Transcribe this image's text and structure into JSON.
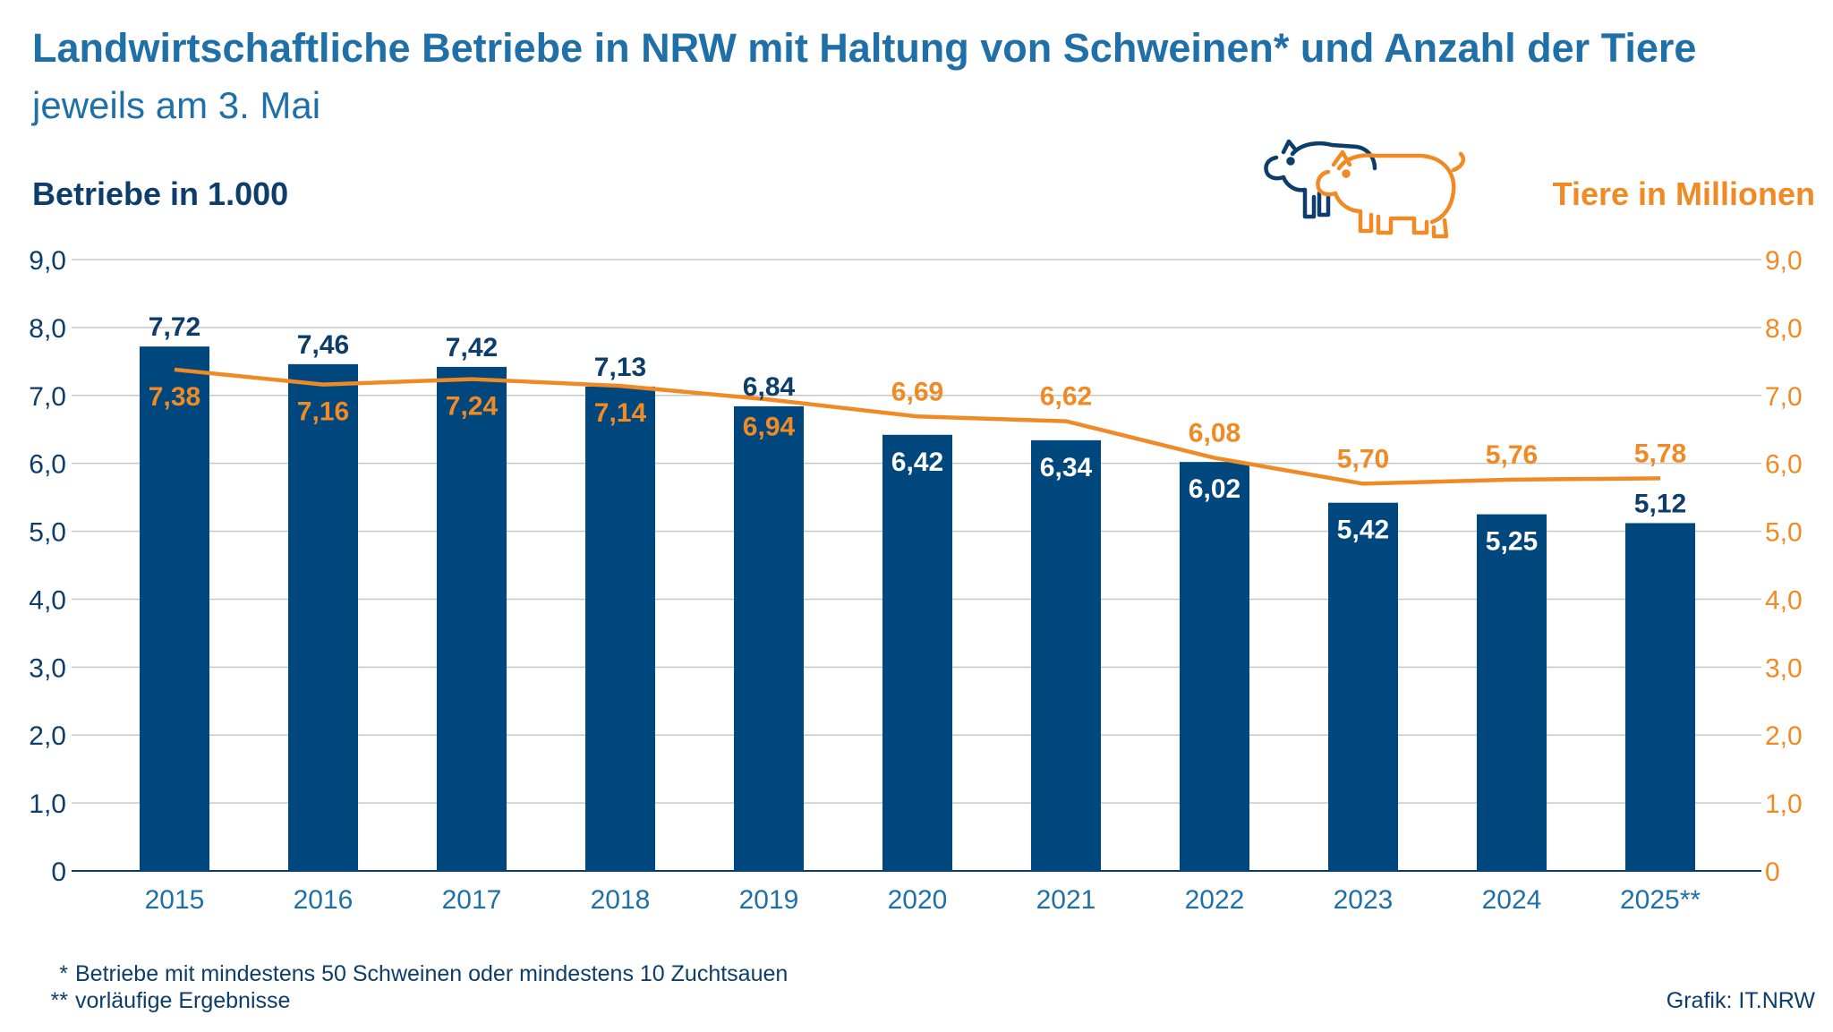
{
  "title": "Landwirtschaftliche Betriebe in NRW mit Haltung von Schweinen* und Anzahl der Tiere",
  "subtitle": "jeweils am 3. Mai",
  "icons": [
    "pig-icon-blue",
    "pig-icon-orange"
  ],
  "colors": {
    "bars": "#00477d",
    "line": "#f08a24",
    "title": "#1f6fa8",
    "grid": "#c8c8c8"
  },
  "chart_data": {
    "type": "bar",
    "categories": [
      "2015",
      "2016",
      "2017",
      "2018",
      "2019",
      "2020",
      "2021",
      "2022",
      "2023",
      "2024",
      "2025**"
    ],
    "left_axis": {
      "label": "Betriebe in 1.000",
      "ylim": [
        0,
        9
      ],
      "ticks": [
        "0",
        "1,0",
        "2,0",
        "3,0",
        "4,0",
        "5,0",
        "6,0",
        "7,0",
        "8,0",
        "9,0"
      ]
    },
    "right_axis": {
      "label": "Tiere in Millionen",
      "ylim": [
        0,
        9
      ],
      "ticks": [
        "0",
        "1,0",
        "2,0",
        "3,0",
        "4,0",
        "5,0",
        "6,0",
        "7,0",
        "8,0",
        "9,0"
      ]
    },
    "series": [
      {
        "type": "bar",
        "axis": "left",
        "values": [
          7.72,
          7.46,
          7.42,
          7.13,
          6.84,
          6.42,
          6.34,
          6.02,
          5.42,
          5.25,
          5.12
        ],
        "labels": [
          "7,72",
          "7,46",
          "7,42",
          "7,13",
          "6,84",
          "6,42",
          "6,34",
          "6,02",
          "5,42",
          "5,25",
          "5,12"
        ]
      },
      {
        "type": "line",
        "axis": "right",
        "values": [
          7.38,
          7.16,
          7.24,
          7.14,
          6.94,
          6.69,
          6.62,
          6.08,
          5.7,
          5.76,
          5.78
        ],
        "labels": [
          "7,38",
          "7,16",
          "7,24",
          "7,14",
          "6,94",
          "6,69",
          "6,62",
          "6,08",
          "5,70",
          "5,76",
          "5,78"
        ]
      }
    ],
    "grid": true
  },
  "footnotes": [
    {
      "mark": "*",
      "text": "Betriebe mit mindestens 50 Schweinen oder mindestens 10 Zuchtsauen"
    },
    {
      "mark": "**",
      "text": "vorläufige Ergebnisse"
    }
  ],
  "credit": "Grafik: IT.NRW"
}
